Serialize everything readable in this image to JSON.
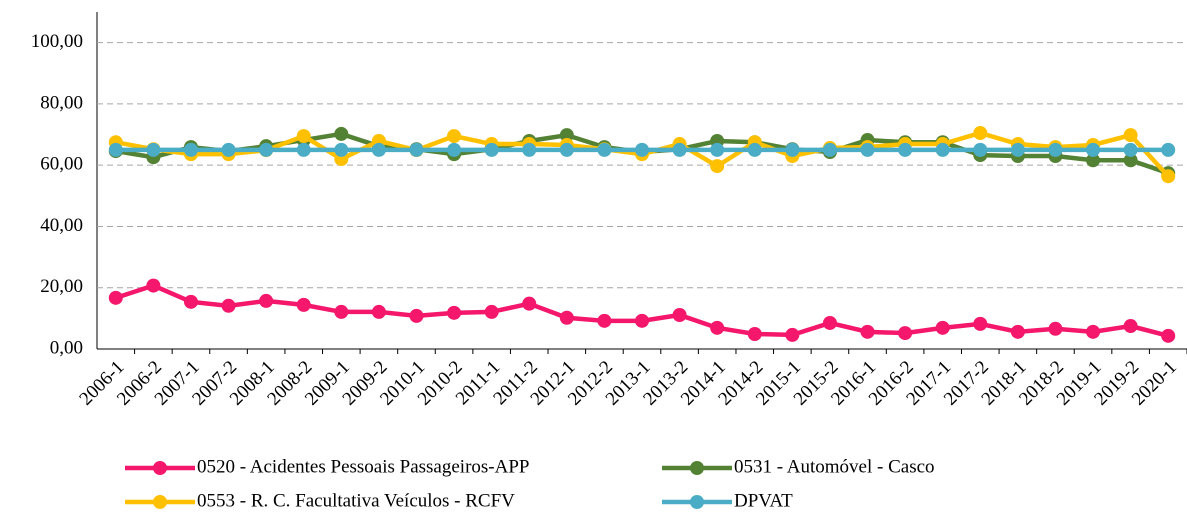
{
  "chart_data": {
    "type": "line",
    "categories": [
      "2006-1",
      "2006-2",
      "2007-1",
      "2007-2",
      "2008-1",
      "2008-2",
      "2009-1",
      "2009-2",
      "2010-1",
      "2010-2",
      "2011-1",
      "2011-2",
      "2012-1",
      "2012-2",
      "2013-1",
      "2013-2",
      "2014-1",
      "2014-2",
      "2015-1",
      "2015-2",
      "2016-1",
      "2016-2",
      "2017-1",
      "2017-2",
      "2018-1",
      "2018-2",
      "2019-1",
      "2019-2",
      "2020-1"
    ],
    "series": [
      {
        "name": "0520 - Acidentes Pessoais Passageiros-APP",
        "color": "#f4176b",
        "values": [
          16.7,
          20.7,
          15.4,
          14.1,
          15.7,
          14.4,
          12.1,
          12.1,
          10.8,
          11.8,
          12.1,
          14.8,
          10.2,
          9.2,
          9.2,
          11.1,
          6.9,
          4.9,
          4.6,
          8.5,
          5.6,
          5.2,
          6.9,
          8.2,
          5.6,
          6.6,
          5.6,
          7.5,
          4.3
        ]
      },
      {
        "name": "0531 - Automóvel - Casco",
        "color": "#548235",
        "values": [
          64.6,
          62.6,
          65.9,
          64.6,
          66.2,
          68.2,
          70.2,
          66.2,
          65.2,
          63.6,
          65.2,
          67.9,
          69.8,
          65.9,
          64.3,
          65.2,
          67.9,
          67.5,
          65.2,
          64.3,
          68.2,
          67.5,
          67.5,
          63.3,
          63.0,
          63.0,
          61.6,
          61.6,
          57.4
        ]
      },
      {
        "name": "0553 - R. C. Facultativa Veículos - RCFV",
        "color": "#ffc000",
        "values": [
          67.5,
          65.2,
          63.6,
          63.6,
          64.9,
          69.5,
          62.0,
          67.9,
          64.9,
          69.5,
          66.9,
          66.9,
          66.6,
          65.2,
          63.6,
          66.9,
          59.7,
          67.5,
          63.0,
          65.6,
          65.9,
          66.9,
          66.9,
          70.5,
          66.9,
          65.9,
          66.6,
          69.8,
          56.4
        ]
      },
      {
        "name": "DPVAT",
        "color": "#4bacc6",
        "values": [
          65,
          65,
          65,
          65,
          65,
          65,
          65,
          65,
          65,
          65,
          65,
          65,
          65,
          65,
          65,
          65,
          65,
          65,
          65,
          65,
          65,
          65,
          65,
          65,
          65,
          65,
          65,
          65,
          65
        ]
      }
    ],
    "ylim": [
      0,
      110
    ],
    "yticks": [
      {
        "value": 0,
        "label": "0,00"
      },
      {
        "value": 20,
        "label": "20,00"
      },
      {
        "value": 40,
        "label": "40,00"
      },
      {
        "value": 60,
        "label": "60,00"
      },
      {
        "value": 80,
        "label": "80,00"
      },
      {
        "value": 100,
        "label": "100,00"
      }
    ],
    "grid": true
  }
}
